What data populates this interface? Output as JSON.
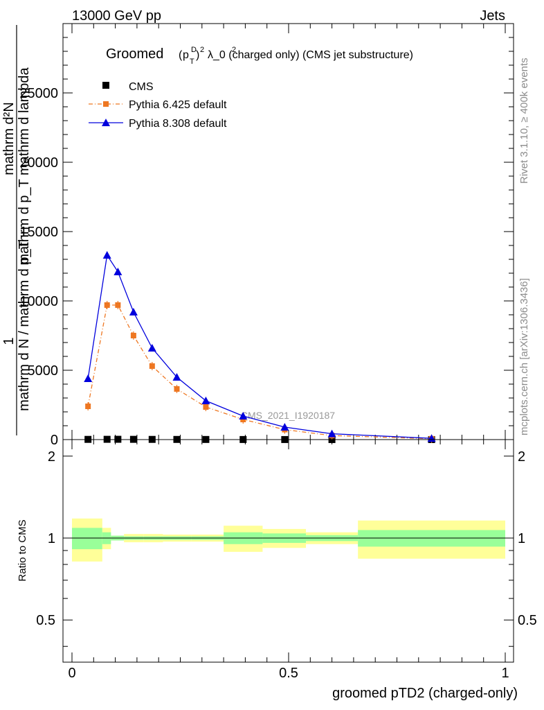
{
  "header": {
    "left": "13000 GeV pp",
    "right": "Jets"
  },
  "side_labels": {
    "rivet": "Rivet 3.1.10, ≥ 400k events",
    "mcplots": "mcplots.cern.ch [arXiv:1306.3436]"
  },
  "main_plot": {
    "title_main": "Groomed",
    "title_rest": "λ_0  (charged only) (CMS jet substructure)",
    "title_sub_p": "p",
    "title_sup_D": "D",
    "title_sub_T": "T",
    "title_sup_2a": "2",
    "title_sup_2b": "2",
    "ylabel_line1": "1",
    "ylabel_num": "mathrm d²N",
    "ylabel_den_top": "mathrm d p_T mathrm d lambda",
    "ylabel_den_bottom": "mathrm d N / mathrm d p_T",
    "watermark": "CMS_2021_I1920187"
  },
  "ratio_plot": {
    "ylabel": "Ratio to CMS"
  },
  "xlabel": "groomed pTD2 (charged-only)",
  "colors": {
    "cms": "#000000",
    "pythia6": "#ee7722",
    "pythia8": "#0000dd",
    "band_inner": "#99ff99",
    "band_outer": "#ffff99"
  },
  "chart_data": [
    {
      "type": "line",
      "ylim": [
        0,
        30000
      ],
      "xlim": [
        0,
        1
      ],
      "grid": false,
      "legend_position": "top-left",
      "yticks": [
        0,
        5000,
        10000,
        15000,
        20000,
        25000
      ],
      "ytick_labels": [
        "0",
        "5000",
        "10000",
        "15000",
        "20000",
        "25000"
      ],
      "xticks": [
        0,
        0.5,
        1
      ],
      "xtick_labels": [
        "0",
        "0.5",
        "1"
      ],
      "series": [
        {
          "name": "CMS",
          "style": "markers",
          "x": [
            0.037,
            0.081,
            0.106,
            0.142,
            0.185,
            0.242,
            0.309,
            0.395,
            0.491,
            0.6,
            0.83
          ],
          "y": [
            15,
            20,
            22,
            18,
            14,
            11,
            9,
            6,
            4,
            2,
            1
          ]
        },
        {
          "name": "Pythia 6.425 default",
          "style": "dashdot-squares",
          "x": [
            0.037,
            0.081,
            0.106,
            0.142,
            0.185,
            0.242,
            0.309,
            0.395,
            0.491,
            0.6,
            0.83
          ],
          "y": [
            2400,
            9700,
            9700,
            7500,
            5300,
            3650,
            2350,
            1450,
            720,
            290,
            60
          ]
        },
        {
          "name": "Pythia 8.308 default",
          "style": "solid-triangles",
          "x": [
            0.037,
            0.081,
            0.106,
            0.142,
            0.185,
            0.242,
            0.309,
            0.395,
            0.491,
            0.6,
            0.83
          ],
          "y": [
            4400,
            13300,
            12100,
            9200,
            6600,
            4500,
            2800,
            1700,
            900,
            420,
            90
          ]
        }
      ]
    },
    {
      "type": "area",
      "ylim": [
        0.35,
        2.3
      ],
      "yticks": [
        0.5,
        1,
        2
      ],
      "ytick_labels": [
        "0.5",
        "1",
        "2"
      ],
      "reference_line": 1,
      "bands": {
        "edges": [
          0,
          0.07,
          0.09,
          0.12,
          0.165,
          0.21,
          0.275,
          0.35,
          0.44,
          0.54,
          0.66,
          1.0
        ],
        "inner_low": [
          0.91,
          0.95,
          0.98,
          0.985,
          0.985,
          0.985,
          0.985,
          0.95,
          0.96,
          0.975,
          0.93
        ],
        "inner_high": [
          1.09,
          1.05,
          1.02,
          1.015,
          1.015,
          1.015,
          1.015,
          1.05,
          1.04,
          1.025,
          1.07
        ],
        "outer_low": [
          0.82,
          0.91,
          0.98,
          0.965,
          0.965,
          0.97,
          0.97,
          0.89,
          0.92,
          0.95,
          0.84
        ],
        "outer_high": [
          1.18,
          1.09,
          1.02,
          1.035,
          1.035,
          1.03,
          1.03,
          1.11,
          1.08,
          1.05,
          1.16
        ]
      }
    }
  ]
}
